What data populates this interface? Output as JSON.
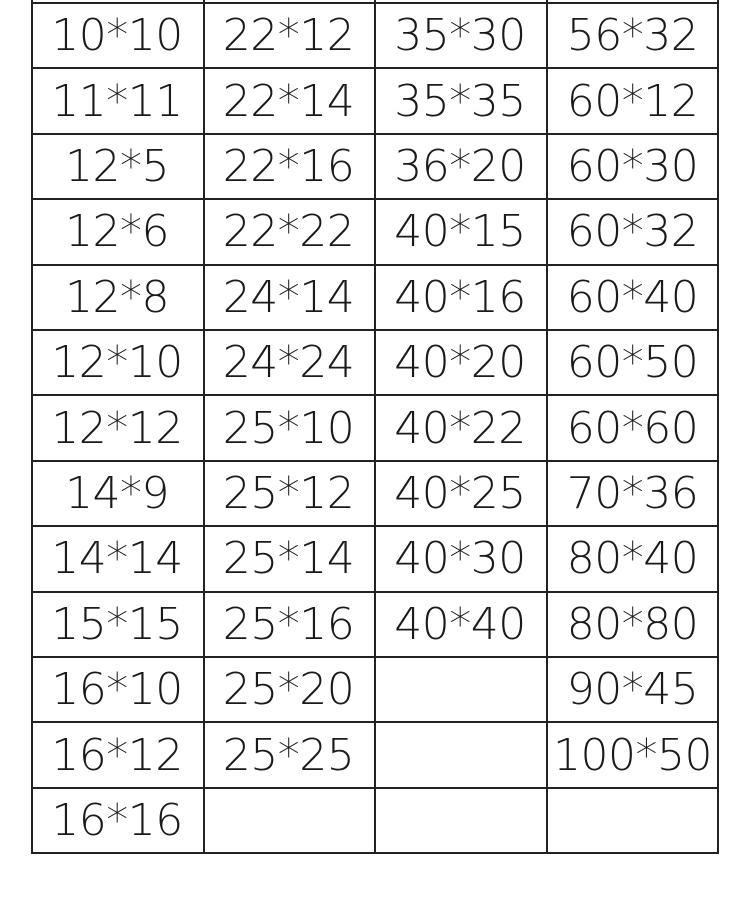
{
  "table": {
    "columns": [
      [
        "10*10",
        "11*11",
        "12*5",
        "12*6",
        "12*8",
        "12*10",
        "12*12",
        "14*9",
        "14*14",
        "15*15",
        "16*10",
        "16*12",
        "16*16"
      ],
      [
        "22*12",
        "22*14",
        "22*16",
        "22*22",
        "24*14",
        "24*24",
        "25*10",
        "25*12",
        "25*14",
        "25*16",
        "25*20",
        "25*25",
        ""
      ],
      [
        "35*30",
        "35*35",
        "36*20",
        "40*15",
        "40*16",
        "40*20",
        "40*22",
        "40*25",
        "40*30",
        "40*40",
        "",
        "",
        ""
      ],
      [
        "56*32",
        "60*12",
        "60*30",
        "60*32",
        "60*40",
        "60*50",
        "60*60",
        "70*36",
        "80*40",
        "80*80",
        "90*45",
        "100*50",
        ""
      ]
    ]
  }
}
